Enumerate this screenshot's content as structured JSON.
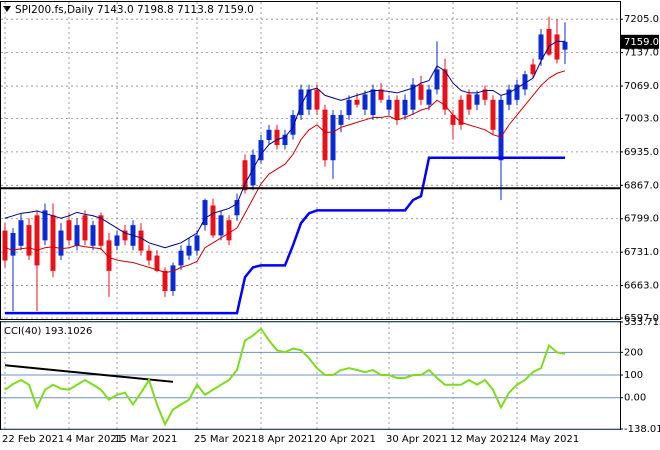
{
  "chart_data": [
    {
      "type": "candlestick",
      "title": "SPI200.fs,Daily  7143.0 7198.8 7113.8 7159.0",
      "categories": [
        "22 Feb 2021",
        null,
        null,
        null,
        null,
        null,
        null,
        null,
        "4 Mar 2021",
        null,
        null,
        null,
        null,
        null,
        "15 Mar 2021",
        null,
        null,
        null,
        null,
        null,
        null,
        null,
        null,
        null,
        "25 Mar 2021",
        null,
        null,
        null,
        null,
        null,
        null,
        null,
        "8 Apr 2021",
        null,
        null,
        null,
        null,
        null,
        null,
        "20 Apr 2021",
        null,
        null,
        null,
        null,
        null,
        null,
        null,
        null,
        "30 Apr 2021",
        null,
        null,
        null,
        null,
        null,
        null,
        null,
        "12 May 2021",
        null,
        null,
        null,
        null,
        null,
        null,
        null,
        "24 May 2021",
        null,
        null,
        null,
        null,
        null,
        null
      ],
      "open": [
        6775,
        6724,
        6744,
        6786,
        6806,
        6755,
        6806,
        6724,
        6796,
        6744,
        6806,
        6744,
        6806,
        6755,
        6744,
        6775,
        6744,
        6775,
        6734,
        6724,
        6693,
        6652,
        6704,
        6724,
        6734,
        6786,
        6826,
        6765,
        6796,
        6806,
        6918,
        6867,
        6918,
        6959,
        6980,
        6949,
        6970,
        7010,
        7021,
        7062,
        7021,
        6918,
        6990,
        7010,
        7041,
        7021,
        7010,
        7062,
        7021,
        7041,
        7010,
        7021,
        7072,
        7031,
        7062,
        7103,
        7010,
        7041,
        7052,
        7031,
        7062,
        7041,
        6918,
        7031,
        7041,
        7062,
        7113,
        7123,
        7185,
        7174,
        7143
      ],
      "high": [
        6790,
        6780,
        6810,
        6800,
        6816,
        6830,
        6830,
        6790,
        6810,
        6800,
        6816,
        6795,
        6812,
        6770,
        6775,
        6786,
        6796,
        6790,
        6745,
        6735,
        6700,
        6710,
        6745,
        6760,
        6775,
        6840,
        6840,
        6815,
        6806,
        6850,
        6930,
        6940,
        6970,
        6990,
        6990,
        6980,
        7020,
        7072,
        7072,
        7072,
        7031,
        7020,
        7020,
        7050,
        7055,
        7060,
        7072,
        7075,
        7050,
        7050,
        7052,
        7085,
        7090,
        7072,
        7160,
        7125,
        7020,
        7050,
        7062,
        7060,
        7070,
        7050,
        7050,
        7072,
        7082,
        7100,
        7125,
        7185,
        7210,
        7205,
        7198.8
      ],
      "low": [
        6700,
        6611,
        6735,
        6715,
        6611,
        6745,
        6680,
        6715,
        6745,
        6735,
        6745,
        6735,
        6735,
        6640,
        6735,
        6745,
        6735,
        6724,
        6704,
        6690,
        6640,
        6642,
        6695,
        6715,
        6724,
        6775,
        6760,
        6755,
        6745,
        6795,
        6850,
        6857,
        6910,
        6950,
        6940,
        6940,
        6960,
        7000,
        7010,
        7010,
        6905,
        6880,
        6975,
        7000,
        7025,
        7010,
        7000,
        7035,
        7010,
        6990,
        7000,
        7010,
        7030,
        7020,
        7052,
        7010,
        6960,
        6980,
        7010,
        7020,
        7030,
        6970,
        6837,
        7020,
        7030,
        7050,
        7085,
        7110,
        7130,
        7115,
        7113.8
      ],
      "close": [
        6714,
        6770,
        6796,
        6724,
        6704,
        6816,
        6693,
        6775,
        6755,
        6786,
        6755,
        6786,
        6744,
        6693,
        6765,
        6755,
        6786,
        6734,
        6714,
        6693,
        6652,
        6704,
        6734,
        6744,
        6765,
        6837,
        6765,
        6806,
        6755,
        6837,
        6857,
        6929,
        6959,
        6980,
        6949,
        6970,
        7010,
        7062,
        7062,
        7021,
        6918,
        7010,
        7010,
        7041,
        7031,
        7052,
        7062,
        7041,
        7041,
        7000,
        7041,
        7072,
        7041,
        7062,
        7103,
        7021,
        6990,
        6990,
        7021,
        7052,
        7041,
        6980,
        7041,
        7062,
        7072,
        7093,
        7093,
        7174,
        7133,
        7123,
        7159
      ],
      "up_color": "#0a2bd4",
      "down_color": "#e8101a",
      "lines": [
        {
          "color": "#00008b",
          "values": [
            6800,
            6805,
            6810,
            6812,
            6815,
            6810,
            6805,
            6800,
            6805,
            6812,
            6808,
            6805,
            6800,
            6790,
            6780,
            6770,
            6765,
            6760,
            6750,
            6745,
            6740,
            6745,
            6750,
            6760,
            6770,
            6800,
            6810,
            6815,
            6820,
            6830,
            6870,
            6900,
            6930,
            6950,
            6960,
            6965,
            6985,
            7030,
            7060,
            7065,
            7050,
            7045,
            7040,
            7045,
            7050,
            7055,
            7060,
            7060,
            7058,
            7055,
            7060,
            7065,
            7075,
            7080,
            7110,
            7100,
            7075,
            7060,
            7055,
            7055,
            7060,
            7060,
            7050,
            7055,
            7065,
            7075,
            7085,
            7120,
            7150,
            7160,
            7160
          ]
        },
        {
          "color": "#cc0000",
          "values": [
            6740,
            6735,
            6738,
            6740,
            6735,
            6740,
            6742,
            6738,
            6740,
            6745,
            6742,
            6740,
            6738,
            6720,
            6715,
            6712,
            6710,
            6705,
            6700,
            6695,
            6690,
            6692,
            6700,
            6705,
            6712,
            6740,
            6750,
            6760,
            6770,
            6780,
            6810,
            6840,
            6870,
            6890,
            6900,
            6910,
            6930,
            6960,
            6980,
            6990,
            6975,
            6975,
            6985,
            6990,
            6995,
            7000,
            7005,
            7005,
            7008,
            7000,
            7005,
            7012,
            7020,
            7025,
            7040,
            7030,
            7010,
            6995,
            6990,
            6985,
            6980,
            6970,
            6965,
            6990,
            7010,
            7030,
            7050,
            7070,
            7085,
            7095,
            7100
          ]
        },
        {
          "color": "#0000ff",
          "values": [
            6607,
            6607,
            6607,
            6607,
            6607,
            6607,
            6607,
            6607,
            6607,
            6607,
            6607,
            6607,
            6607,
            6607,
            6607,
            6607,
            6607,
            6607,
            6607,
            6607,
            6607,
            6607,
            6607,
            6607,
            6607,
            6607,
            6607,
            6607,
            6607,
            6607,
            6680,
            6700,
            6704,
            6704,
            6704,
            6704,
            6745,
            6790,
            6810,
            6816,
            6816,
            6816,
            6816,
            6816,
            6816,
            6816,
            6816,
            6816,
            6816,
            6816,
            6816,
            6837,
            6845,
            6923,
            6923,
            6923,
            6923,
            6923,
            6923,
            6923,
            6923,
            6923,
            6923,
            6923,
            6923,
            6923,
            6923,
            6923,
            6923,
            6923,
            6923
          ]
        }
      ],
      "levels": [
        6861
      ],
      "level_color": "#000000",
      "ylim": [
        6595,
        7240
      ],
      "yticks": [
        {
          "value": 7205,
          "label": "7205.0"
        },
        {
          "value": 7137,
          "label": "7137.0"
        },
        {
          "value": 7069,
          "label": "7069.0"
        },
        {
          "value": 7003,
          "label": "7003.0"
        },
        {
          "value": 6935,
          "label": "6935.0"
        },
        {
          "value": 6867,
          "label": "6867.0"
        },
        {
          "value": 6799,
          "label": "6799.0"
        },
        {
          "value": 6731,
          "label": "6731.0"
        },
        {
          "value": 6663,
          "label": "6663.0"
        },
        {
          "value": 6597,
          "label": "6597.0"
        }
      ],
      "grid": true,
      "last_price": {
        "value": 7159,
        "label": "7159.0"
      }
    },
    {
      "type": "line",
      "title": "CCI(40) 193.1026",
      "color": "#7fdb20",
      "values": [
        35,
        60,
        78,
        57,
        -43,
        35,
        57,
        40,
        35,
        57,
        78,
        57,
        35,
        -9,
        13,
        22,
        -30,
        22,
        78,
        -30,
        -117,
        -52,
        -30,
        -9,
        57,
        13,
        35,
        57,
        78,
        122,
        252,
        274,
        304,
        252,
        209,
        200,
        217,
        209,
        174,
        130,
        100,
        100,
        122,
        130,
        122,
        113,
        122,
        100,
        100,
        87,
        87,
        100,
        100,
        122,
        87,
        57,
        57,
        57,
        78,
        57,
        78,
        35,
        -43,
        22,
        57,
        78,
        113,
        130,
        230,
        200,
        193.1026
      ],
      "trendline": {
        "x": [
          0,
          21
        ],
        "values": [
          143,
          70
        ],
        "color": "#000000"
      },
      "ylim": [
        -138.012,
        333.7135
      ],
      "yticks": [
        333.7135,
        200,
        100,
        {
          "value": 0,
          "label": "0.00"
        },
        -138.012
      ],
      "grid_color": "#6b8fc4"
    }
  ]
}
